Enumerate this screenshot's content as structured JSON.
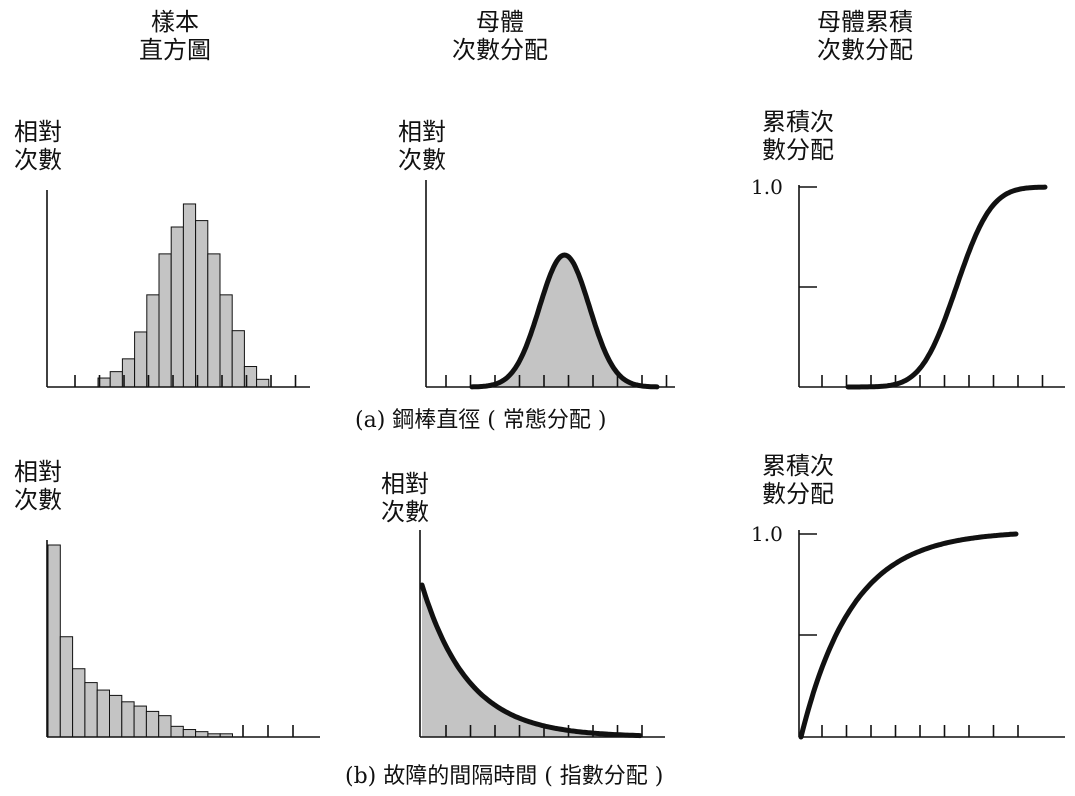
{
  "column_titles": [
    {
      "line1": "樣本",
      "line2": "直方圖"
    },
    {
      "line1": "母體",
      "line2": "次數分配"
    },
    {
      "line1": "母體累積",
      "line2": "次數分配"
    }
  ],
  "captions": {
    "a": "(a) 鋼棒直徑 ( 常態分配 )",
    "b": "(b) 故障的間隔時間 ( 指數分配 )"
  },
  "y_labels": {
    "freq_line1": "相對",
    "freq_line2": "次數",
    "cum_line1": "累積次",
    "cum_line2": "數分配"
  },
  "tick_one": "1.0",
  "colors": {
    "ink": "#111111",
    "fill": "#c4c4c4"
  },
  "chart_data": [
    {
      "type": "bar",
      "row": "a",
      "title": "樣本直方圖",
      "ylabel": "相對次數",
      "values": [
        0.7,
        1.2,
        2.2,
        4.3,
        7.2,
        10.4,
        12.5,
        14.3,
        13.0,
        10.4,
        7.2,
        4.4,
        1.6,
        0.6
      ],
      "ylim": [
        0,
        15
      ],
      "x_ticks": 10
    },
    {
      "type": "area",
      "row": "a",
      "title": "母體次數分配",
      "ylabel": "相對次數",
      "distribution": "normal",
      "mean": 5.0,
      "sd": 1.35,
      "xlim": [
        0,
        10
      ],
      "ylim": [
        0,
        1.1
      ],
      "x_ticks": 10
    },
    {
      "type": "line",
      "row": "a",
      "title": "母體累積次數分配",
      "ylabel": "累積次數分配",
      "distribution": "normal_cdf",
      "mean": 5.5,
      "sd": 1.4,
      "xlim": [
        0,
        10
      ],
      "ylim": [
        0,
        1.0
      ],
      "y_ticks": [
        0.5,
        1.0
      ],
      "x_ticks": 10
    },
    {
      "type": "bar",
      "row": "b",
      "title": "樣本直方圖",
      "ylabel": "相對次數",
      "values": [
        18.0,
        9.4,
        6.4,
        5.1,
        4.4,
        3.9,
        3.3,
        2.9,
        2.4,
        2.0,
        1.0,
        0.7,
        0.5,
        0.3,
        0.3
      ],
      "ylim": [
        0,
        18
      ],
      "x_ticks": 10
    },
    {
      "type": "area",
      "row": "b",
      "title": "母體次數分配",
      "ylabel": "相對次數",
      "distribution": "exponential",
      "rate": 0.85,
      "xlim": [
        0,
        10
      ],
      "ylim": [
        0,
        1.1
      ],
      "x_ticks": 9
    },
    {
      "type": "line",
      "row": "b",
      "title": "母體累積次數分配",
      "ylabel": "累積次數分配",
      "distribution": "exponential_cdf",
      "rate": 0.42,
      "xlim": [
        0,
        10
      ],
      "ylim": [
        0,
        1.0
      ],
      "y_ticks": [
        0.5,
        1.0
      ],
      "x_ticks": 9
    }
  ]
}
